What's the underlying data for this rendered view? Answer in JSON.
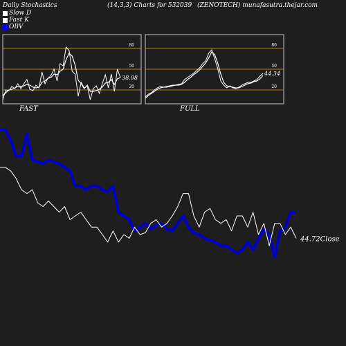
{
  "header": {
    "title": "Daily Stochastics",
    "params": "(14,3,3) Charts for 532039",
    "site": "(ZENOTECH) munafasutra.thejar.com"
  },
  "legend": [
    {
      "label": "Slow  D",
      "color": "#ffffff"
    },
    {
      "label": "Fast K",
      "color": "#ffffff"
    },
    {
      "label": "OBV",
      "color": "#0000ff"
    }
  ],
  "colors": {
    "background": "#1e1e1e",
    "band": "#b8860b",
    "line": "#ffffff",
    "obv": "#0000cc"
  },
  "chart_data": [
    {
      "type": "line",
      "title": "FAST",
      "ylim": [
        0,
        100
      ],
      "bands": [
        20,
        50,
        80
      ],
      "tick_labels": [
        "80",
        "50",
        "20"
      ],
      "value_label": "38.08",
      "series": [
        {
          "name": "Fast K",
          "values": [
            6,
            20,
            19,
            25,
            22,
            29,
            22,
            29,
            35,
            21,
            19,
            27,
            23,
            46,
            29,
            37,
            41,
            50,
            33,
            58,
            55,
            82,
            77,
            47,
            43,
            11,
            31,
            23,
            26,
            6,
            22,
            26,
            15,
            29,
            42,
            23,
            43,
            18,
            50,
            38
          ]
        },
        {
          "name": "Slow D",
          "values": [
            12,
            16,
            20,
            21,
            23,
            25,
            25,
            26,
            28,
            27,
            24,
            23,
            24,
            31,
            33,
            37,
            38,
            43,
            42,
            47,
            50,
            64,
            73,
            69,
            56,
            34,
            29,
            22,
            27,
            18,
            18,
            19,
            21,
            24,
            30,
            31,
            35,
            28,
            36,
            38
          ]
        }
      ]
    },
    {
      "type": "line",
      "title": "FULL",
      "ylim": [
        0,
        100
      ],
      "bands": [
        20,
        50,
        80
      ],
      "tick_labels": [
        "80",
        "50",
        "20"
      ],
      "value_label": "44.34",
      "series": [
        {
          "name": "Fast K",
          "values": [
            10,
            14,
            16,
            20,
            23,
            25,
            24,
            25,
            26,
            27,
            27,
            28,
            29,
            35,
            38,
            41,
            44,
            48,
            52,
            58,
            62,
            73,
            78,
            65,
            51,
            33,
            27,
            23,
            26,
            23,
            22,
            24,
            27,
            29,
            31,
            31,
            33,
            35,
            40,
            44
          ]
        },
        {
          "name": "Slow D",
          "values": [
            8,
            12,
            15,
            18,
            21,
            23,
            24,
            24,
            25,
            26,
            27,
            27,
            28,
            31,
            35,
            38,
            42,
            45,
            49,
            54,
            59,
            66,
            75,
            71,
            59,
            43,
            31,
            26,
            25,
            24,
            23,
            23,
            25,
            27,
            29,
            30,
            32,
            33,
            36,
            41
          ]
        }
      ]
    },
    {
      "type": "line",
      "title": "",
      "close_label": "44.72Close",
      "series": [
        {
          "name": "OBV",
          "values": [
            86,
            86,
            80,
            72,
            72,
            84,
            70,
            69,
            68,
            70,
            69,
            68,
            66,
            64,
            56,
            56,
            54,
            56,
            56,
            54,
            53,
            56,
            42,
            40,
            38,
            32,
            34,
            36,
            33,
            35,
            36,
            33,
            32,
            36,
            40,
            34,
            31,
            30,
            28,
            27,
            26,
            24,
            24,
            22,
            20,
            22,
            26,
            22,
            28,
            33,
            30,
            18,
            32,
            34,
            42,
            42
          ]
        },
        {
          "name": "Close",
          "values": [
            66,
            66,
            64,
            60,
            54,
            52,
            54,
            47,
            45,
            48,
            45,
            42,
            45,
            38,
            40,
            42,
            38,
            34,
            34,
            30,
            26,
            32,
            26,
            30,
            28,
            34,
            30,
            31,
            36,
            38,
            34,
            36,
            40,
            45,
            52,
            52,
            40,
            34,
            42,
            44,
            38,
            36,
            38,
            32,
            40,
            40,
            34,
            42,
            30,
            36,
            24,
            36,
            36,
            30,
            34,
            28
          ]
        }
      ]
    }
  ]
}
